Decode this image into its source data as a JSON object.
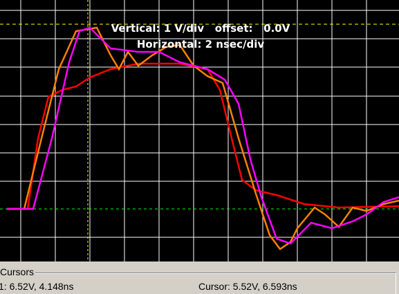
{
  "scope": {
    "vertical": "Vertical: 1 V/div   offset:   0.0V",
    "horizontal": "Horizontal: 2 nsec/div"
  },
  "cursors": {
    "title": "Cursors",
    "cursor1": "1: 6.52V, 4.148ns",
    "cursor2": "Cursor: 5.52V, 6.593ns"
  }
}
